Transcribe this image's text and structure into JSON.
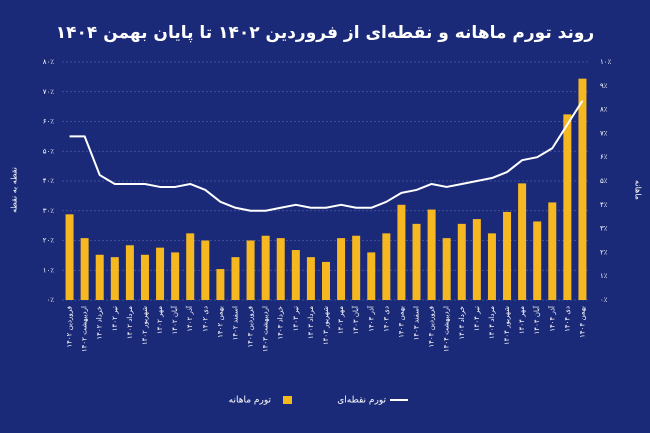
{
  "chart_data": {
    "type": "bar",
    "title": "روند تورم ماهانه و نقطه‌ای از فروردین ۱۴۰۲ تا پایان بهمن ۱۴۰۴",
    "y_label": "نقطه به نقطه",
    "y2_label": "ماهانه",
    "categories": [
      "فروردین ۱۴۰۲",
      "اردیبهشت ۱۴۰۲",
      "خرداد ۱۴۰۲",
      "تیر ۱۴۰۲",
      "مرداد ۱۴۰۲",
      "شهریور ۱۴۰۲",
      "مهر ۱۴۰۲",
      "آبان ۱۴۰۲",
      "آذر ۱۴۰۲",
      "دی ۱۴۰۲",
      "بهمن ۱۴۰۲",
      "اسفند ۱۴۰۲",
      "فروردین ۱۴۰۳",
      "اردیبهشت ۱۴۰۳",
      "خرداد ۱۴۰۳",
      "تیر ۱۴۰۳",
      "مرداد ۱۴۰۳",
      "شهریور ۱۴۰۳",
      "مهر ۱۴۰۳",
      "آبان ۱۴۰۳",
      "آذر ۱۴۰۳",
      "دی ۱۴۰۳",
      "بهمن ۱۴۰۳",
      "اسفند ۱۴۰۳",
      "فروردین ۱۴۰۴",
      "اردیبهشت ۱۴۰۴",
      "خرداد ۱۴۰۴",
      "تیر ۱۴۰۴",
      "مرداد ۱۴۰۴",
      "شهریور ۱۴۰۴",
      "مهر ۱۴۰۴",
      "آبان ۱۴۰۴",
      "آذر ۱۴۰۴",
      "دی ۱۴۰۴",
      "بهمن ۱۴۰۴"
    ],
    "series": [
      {
        "name": "تورم ماهانه",
        "type": "bar",
        "axis": "y2",
        "color": "#f5b820",
        "values": [
          3.6,
          2.6,
          1.9,
          1.8,
          2.3,
          1.9,
          2.2,
          2.0,
          2.8,
          2.5,
          1.3,
          1.8,
          2.5,
          2.7,
          2.6,
          2.1,
          1.8,
          1.6,
          2.6,
          2.7,
          2.0,
          2.8,
          4.0,
          3.2,
          3.8,
          2.6,
          3.2,
          3.4,
          2.8,
          3.7,
          4.9,
          3.3,
          4.1,
          7.8,
          9.3
        ]
      },
      {
        "name": "تورم نقطه‌ای",
        "type": "line",
        "axis": "y",
        "color": "#ffffff",
        "values": [
          55,
          55,
          42,
          39,
          39,
          39,
          38,
          38,
          39,
          37,
          33,
          31,
          30,
          30,
          31,
          32,
          31,
          31,
          32,
          31,
          31,
          33,
          36,
          37,
          39,
          38,
          39,
          40,
          41,
          43,
          47,
          48,
          51,
          59,
          67
        ]
      }
    ],
    "ylim": [
      0,
      80
    ],
    "yticks": [
      {
        "value": 0,
        "label": "۰٪"
      },
      {
        "value": 10,
        "label": "۱۰٪"
      },
      {
        "value": 20,
        "label": "۲۰٪"
      },
      {
        "value": 30,
        "label": "۳۰٪"
      },
      {
        "value": 40,
        "label": "۴۰٪"
      },
      {
        "value": 50,
        "label": "۵۰٪"
      },
      {
        "value": 60,
        "label": "۶۰٪"
      },
      {
        "value": 70,
        "label": "۷۰٪"
      },
      {
        "value": 80,
        "label": "۸۰٪"
      }
    ],
    "y2lim": [
      0,
      10
    ],
    "y2ticks": [
      {
        "value": 0,
        "label": "۰٪"
      },
      {
        "value": 1,
        "label": "۱٪"
      },
      {
        "value": 2,
        "label": "۲٪"
      },
      {
        "value": 3,
        "label": "۳٪"
      },
      {
        "value": 4,
        "label": "۴٪"
      },
      {
        "value": 5,
        "label": "۵٪"
      },
      {
        "value": 6,
        "label": "۶٪"
      },
      {
        "value": 7,
        "label": "۷٪"
      },
      {
        "value": 8,
        "label": "۸٪"
      },
      {
        "value": 9,
        "label": "۹٪"
      },
      {
        "value": 10,
        "label": "۱۰٪"
      }
    ],
    "grid": true
  }
}
